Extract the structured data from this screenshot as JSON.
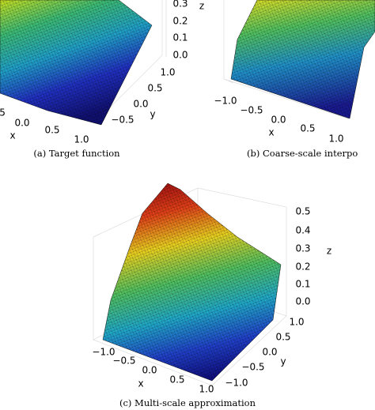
{
  "panels": [
    {
      "caption": "(a) Target function",
      "z_ticks": [
        "0.3",
        "0.2",
        "0.1",
        "0.0"
      ],
      "z_label": "z",
      "y_ticks": [
        "1.0",
        "0.5",
        "0.0",
        "−0.5"
      ],
      "y_label": "y",
      "x_ticks": [
        "5",
        "0.0",
        "0.5",
        "1.0"
      ],
      "x_label": "x"
    },
    {
      "caption": "(b) Coarse-scale interpo",
      "x_ticks": [
        "−1.0",
        "−0.5",
        "0.0",
        "0.5",
        "1.0"
      ],
      "x_label": "x"
    },
    {
      "caption": "(c) Multi-scale approximation",
      "z_ticks": [
        "0.5",
        "0.4",
        "0.3",
        "0.2",
        "0.1",
        "0.0"
      ],
      "z_label": "z",
      "y_ticks": [
        "1.0",
        "0.5",
        "0.0",
        "−0.5",
        "−1.0"
      ],
      "y_label": "y",
      "x_ticks": [
        "−1.0",
        "−0.5",
        "0.0",
        "0.5",
        "1.0"
      ],
      "x_label": "x"
    }
  ]
}
